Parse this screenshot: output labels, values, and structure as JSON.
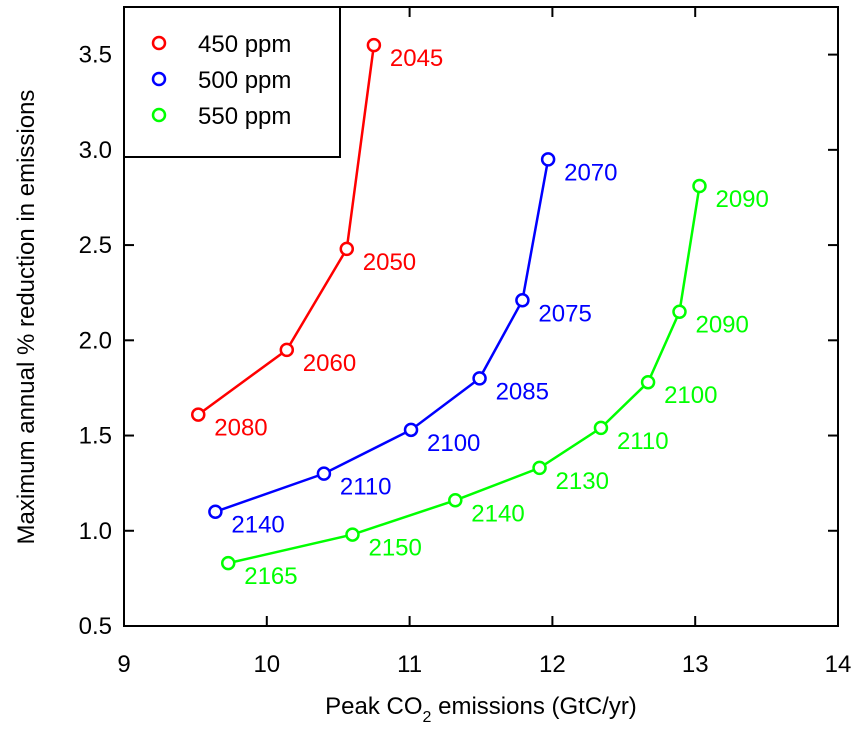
{
  "chart_data": {
    "type": "scatter",
    "title": "",
    "xlabel": "Peak CO",
    "xlabel_subscript": "2",
    "xlabel_suffix": " emissions (GtC/yr)",
    "ylabel": "Maximum annual % reduction in emissions",
    "xlim": [
      9,
      14
    ],
    "ylim": [
      0.5,
      3.75
    ],
    "x_ticks": [
      "9",
      "10",
      "11",
      "12",
      "13",
      "14"
    ],
    "y_ticks": [
      "0.5",
      "1.0",
      "1.5",
      "2.0",
      "2.5",
      "3.0",
      "3.5"
    ],
    "grid": false,
    "legend": "top-left",
    "series": [
      {
        "name": "450 ppm",
        "color": "#ff0000",
        "points": [
          {
            "x": 9.52,
            "y": 1.61,
            "label": "2080"
          },
          {
            "x": 10.14,
            "y": 1.95,
            "label": "2060"
          },
          {
            "x": 10.56,
            "y": 2.48,
            "label": "2050"
          },
          {
            "x": 10.75,
            "y": 3.55,
            "label": "2045"
          }
        ]
      },
      {
        "name": "500 ppm",
        "color": "#0000ff",
        "points": [
          {
            "x": 9.64,
            "y": 1.1,
            "label": "2140"
          },
          {
            "x": 10.4,
            "y": 1.3,
            "label": "2110"
          },
          {
            "x": 11.01,
            "y": 1.53,
            "label": "2100"
          },
          {
            "x": 11.49,
            "y": 1.8,
            "label": "2085"
          },
          {
            "x": 11.79,
            "y": 2.21,
            "label": "2075"
          },
          {
            "x": 11.97,
            "y": 2.95,
            "label": "2070"
          }
        ]
      },
      {
        "name": "550 ppm",
        "color": "#00ff00",
        "points": [
          {
            "x": 9.73,
            "y": 0.83,
            "label": "2165"
          },
          {
            "x": 10.6,
            "y": 0.98,
            "label": "2150"
          },
          {
            "x": 11.32,
            "y": 1.16,
            "label": "2140"
          },
          {
            "x": 11.91,
            "y": 1.33,
            "label": "2130"
          },
          {
            "x": 12.34,
            "y": 1.54,
            "label": "2110"
          },
          {
            "x": 12.67,
            "y": 1.78,
            "label": "2100"
          },
          {
            "x": 12.89,
            "y": 2.15,
            "label": "2090"
          },
          {
            "x": 13.03,
            "y": 2.81,
            "label": "2090"
          }
        ]
      }
    ]
  }
}
